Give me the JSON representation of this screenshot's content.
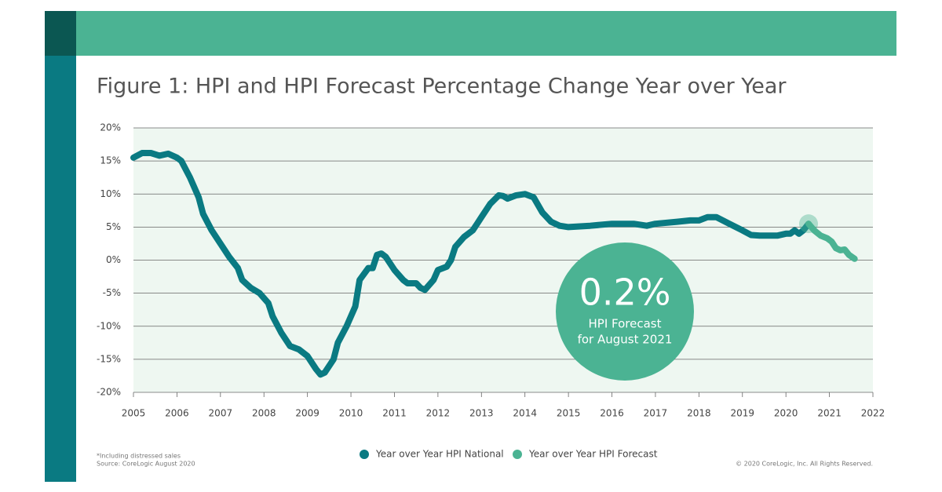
{
  "chart_data": {
    "type": "line",
    "title": "Figure 1: HPI and HPI Forecast Percentage Change Year over Year",
    "xlim": [
      2005,
      2022
    ],
    "xticks": [
      2005,
      2006,
      2007,
      2008,
      2009,
      2010,
      2011,
      2012,
      2013,
      2014,
      2015,
      2016,
      2017,
      2018,
      2019,
      2020,
      2021,
      2022
    ],
    "ylim": [
      -20,
      20
    ],
    "yticks": [
      {
        "value": -20,
        "label": "-20%"
      },
      {
        "value": -15,
        "label": "-15%"
      },
      {
        "value": -10,
        "label": "-10%"
      },
      {
        "value": -5,
        "label": "-5%"
      },
      {
        "value": 0,
        "label": "0%"
      },
      {
        "value": 5,
        "label": "5%"
      },
      {
        "value": 10,
        "label": "10%"
      },
      {
        "value": 15,
        "label": "15%"
      },
      {
        "value": 20,
        "label": "20%"
      }
    ],
    "grid": true,
    "series": [
      {
        "name": "Year over Year HPI National",
        "color": "#0a7a82",
        "x": [
          2005.0,
          2005.2,
          2005.4,
          2005.6,
          2005.8,
          2006.0,
          2006.1,
          2006.3,
          2006.5,
          2006.6,
          2006.8,
          2007.0,
          2007.2,
          2007.4,
          2007.5,
          2007.7,
          2007.9,
          2008.1,
          2008.2,
          2008.4,
          2008.6,
          2008.8,
          2009.0,
          2009.2,
          2009.3,
          2009.4,
          2009.6,
          2009.7,
          2009.9,
          2010.1,
          2010.2,
          2010.4,
          2010.5,
          2010.6,
          2010.7,
          2010.8,
          2011.0,
          2011.2,
          2011.3,
          2011.5,
          2011.6,
          2011.7,
          2011.9,
          2012.0,
          2012.2,
          2012.3,
          2012.4,
          2012.6,
          2012.8,
          2012.9,
          2013.0,
          2013.2,
          2013.4,
          2013.5,
          2013.6,
          2013.8,
          2014.0,
          2014.2,
          2014.4,
          2014.6,
          2014.8,
          2015.0,
          2015.5,
          2016.0,
          2016.5,
          2016.8,
          2017.0,
          2017.5,
          2017.8,
          2018.0,
          2018.2,
          2018.4,
          2018.7,
          2019.0,
          2019.2,
          2019.4,
          2019.8,
          2020.0,
          2020.1,
          2020.2,
          2020.3,
          2020.4,
          2020.52
        ],
        "values": [
          15.5,
          16.2,
          16.2,
          15.8,
          16.1,
          15.5,
          15.0,
          12.5,
          9.5,
          7,
          4.5,
          2.5,
          0.5,
          -1.2,
          -3,
          -4.2,
          -5,
          -6.5,
          -8.5,
          -11,
          -13,
          -13.5,
          -14.5,
          -16.5,
          -17.3,
          -17,
          -15,
          -12.5,
          -10,
          -7,
          -3,
          -1.2,
          -1.2,
          0.8,
          1,
          0.5,
          -1.5,
          -3,
          -3.5,
          -3.5,
          -4.2,
          -4.5,
          -3,
          -1.5,
          -1,
          0,
          2,
          3.5,
          4.5,
          5.5,
          6.5,
          8.5,
          9.8,
          9.7,
          9.3,
          9.8,
          10,
          9.5,
          7.2,
          5.8,
          5.2,
          5,
          5.2,
          5.5,
          5.5,
          5.2,
          5.5,
          5.8,
          6,
          6,
          6.5,
          6.5,
          5.5,
          4.5,
          3.8,
          3.7,
          3.7,
          4,
          4.0,
          4.5,
          4.0,
          4.5,
          5.5
        ]
      },
      {
        "name": "Year over Year HPI Forecast",
        "color": "#4bb393",
        "x": [
          2020.52,
          2020.65,
          2020.8,
          2020.95,
          2021.05,
          2021.15,
          2021.25,
          2021.35,
          2021.45,
          2021.58
        ],
        "values": [
          5.5,
          4.5,
          3.7,
          3.3,
          2.8,
          1.8,
          1.5,
          1.6,
          0.8,
          0.2
        ]
      }
    ],
    "callout": [
      "0.2%",
      "HPI Forecast",
      "for August 2021"
    ],
    "notes": [
      "*Including distressed sales",
      "Source: CoreLogic August 2020"
    ],
    "copyright": "© 2020 CoreLogic, Inc. All Rights Reserved."
  }
}
